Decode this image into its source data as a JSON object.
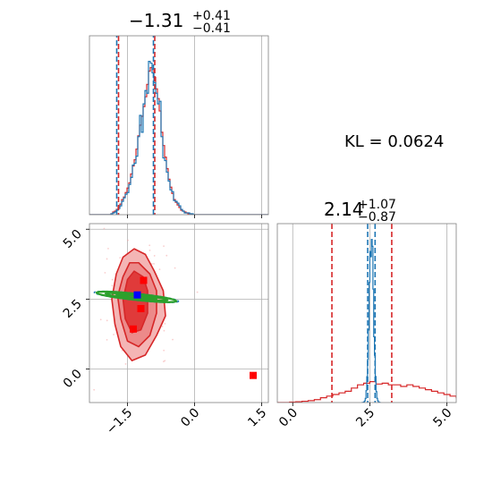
{
  "chart_data": {
    "type": "corner",
    "annotation": "KL = 0.0624",
    "colors": {
      "blue": "#1f77b4",
      "red": "#d62728",
      "green": "#2ca02c",
      "marker_blue": "#0000ff",
      "marker_red": "#ff0000"
    },
    "params": [
      {
        "title_main": "−1.31",
        "title_sup": "+0.41",
        "title_sub": "−0.41",
        "median": -1.31,
        "lo": -1.72,
        "hi": -0.9
      },
      {
        "title_main": "2.14",
        "title_sup": "+1.07",
        "title_sub": "−0.87",
        "median": 2.14,
        "lo": 1.27,
        "hi": 3.21
      }
    ],
    "x_axis": {
      "range": [
        -2.35,
        1.65
      ],
      "ticks": [
        -1.5,
        0.0,
        1.5
      ],
      "tick_labels": [
        "−1.5",
        "0.0",
        "1.5"
      ]
    },
    "y_axis": {
      "range": [
        -1.2,
        5.2
      ],
      "ticks": [
        0.0,
        2.5,
        5.0
      ],
      "tick_labels": [
        "0.0",
        "2.5",
        "5.0"
      ]
    },
    "x2_axis": {
      "range": [
        -0.5,
        5.3
      ],
      "ticks": [
        0.0,
        2.5,
        5.0
      ],
      "tick_labels": [
        "0.0",
        "2.5",
        "5.0"
      ]
    },
    "hist1": {
      "bin_start": -2.35,
      "bin_width": 0.04,
      "blue_quantiles": [
        -1.72,
        -1.31,
        -0.9
      ],
      "red_quantiles": [
        -1.7,
        -1.31,
        -0.89
      ],
      "blue": [
        0,
        0,
        0,
        0,
        0,
        0,
        0,
        0,
        0,
        0,
        0,
        0,
        1,
        2,
        3,
        5,
        7,
        10,
        15,
        19,
        23,
        25,
        34,
        42,
        56,
        58,
        66,
        88,
        112,
        93,
        125,
        140,
        137,
        173,
        171,
        160,
        149,
        137,
        125,
        128,
        88,
        64,
        61,
        48,
        38,
        28,
        26,
        16,
        15,
        13,
        10,
        6,
        4,
        2,
        2,
        2,
        1,
        1,
        0,
        0,
        0,
        0,
        0,
        0,
        0,
        0,
        0,
        0,
        0,
        0,
        0,
        0,
        0,
        0,
        0,
        0,
        0,
        0,
        0,
        0,
        0,
        0,
        0,
        0,
        0,
        0,
        0,
        0,
        0,
        0,
        0,
        0,
        0,
        0,
        0,
        0,
        0,
        0,
        0,
        0
      ],
      "red": [
        0,
        0,
        0,
        0,
        0,
        0,
        0,
        0,
        0,
        0,
        0,
        0,
        1,
        3,
        4,
        6,
        9,
        12,
        17,
        20,
        25,
        30,
        36,
        46,
        55,
        62,
        74,
        89,
        101,
        111,
        122,
        133,
        147,
        162,
        166,
        164,
        155,
        142,
        131,
        117,
        93,
        78,
        65,
        52,
        40,
        31,
        24,
        17,
        14,
        11,
        8,
        5,
        4,
        3,
        2,
        1,
        1,
        0,
        0,
        0,
        0,
        0,
        0,
        0,
        0,
        0,
        0,
        0,
        0,
        0,
        0,
        0,
        0,
        0,
        0,
        0,
        0,
        0,
        0,
        0,
        0,
        0,
        0,
        0,
        0,
        0,
        0,
        0,
        0,
        0,
        0,
        0,
        0,
        0,
        0,
        0,
        0,
        0,
        0,
        0
      ]
    },
    "hist2": {
      "bin_start": -0.5,
      "bin_width": 0.2,
      "blue_quantiles": [
        2.43,
        2.55,
        2.67
      ],
      "red_quantiles": [
        1.27,
        2.14,
        3.21
      ],
      "blue_curve": {
        "mean": 2.55,
        "sd": 0.07,
        "peak": 1.0
      },
      "red": [
        0,
        0,
        0.003,
        0.005,
        0.008,
        0.012,
        0.018,
        0.03,
        0.04,
        0.05,
        0.06,
        0.07,
        0.09,
        0.11,
        0.12,
        0.13,
        0.115,
        0.12,
        0.11,
        0.11,
        0.1,
        0.11,
        0.1,
        0.09,
        0.08,
        0.07,
        0.06,
        0.05,
        0.04,
        0.03,
        0.02
      ]
    },
    "scatter": {
      "red_contours": [
        {
          "level": "outer",
          "points": [
            [
              -1.75,
              3.4
            ],
            [
              -1.6,
              4.0
            ],
            [
              -1.35,
              4.3
            ],
            [
              -1.1,
              4.1
            ],
            [
              -0.9,
              3.5
            ],
            [
              -0.7,
              2.8
            ],
            [
              -0.65,
              1.9
            ],
            [
              -0.85,
              1.2
            ],
            [
              -1.1,
              0.5
            ],
            [
              -1.4,
              0.3
            ],
            [
              -1.65,
              0.8
            ],
            [
              -1.78,
              1.6
            ],
            [
              -1.85,
              2.5
            ]
          ]
        },
        {
          "level": "middle",
          "points": [
            [
              -1.6,
              3.3
            ],
            [
              -1.45,
              3.8
            ],
            [
              -1.25,
              3.8
            ],
            [
              -1.0,
              3.4
            ],
            [
              -0.85,
              2.8
            ],
            [
              -0.85,
              2.0
            ],
            [
              -1.0,
              1.2
            ],
            [
              -1.25,
              0.8
            ],
            [
              -1.5,
              1.0
            ],
            [
              -1.65,
              1.8
            ],
            [
              -1.72,
              2.6
            ]
          ]
        },
        {
          "level": "inner",
          "points": [
            [
              -1.5,
              3.2
            ],
            [
              -1.35,
              3.5
            ],
            [
              -1.15,
              3.3
            ],
            [
              -1.05,
              2.8
            ],
            [
              -1.05,
              2.0
            ],
            [
              -1.2,
              1.4
            ],
            [
              -1.4,
              1.3
            ],
            [
              -1.55,
              1.8
            ],
            [
              -1.6,
              2.5
            ]
          ]
        }
      ],
      "green_ellipses": [
        {
          "cx": -1.3,
          "cy": 2.58,
          "rx": 0.9,
          "ry": 0.11,
          "angle_deg": -6
        },
        {
          "cx": -1.3,
          "cy": 2.58,
          "rx": 0.7,
          "ry": 0.07,
          "angle_deg": -6
        },
        {
          "cx": -1.3,
          "cy": 2.58,
          "rx": 0.45,
          "ry": 0.04,
          "angle_deg": -6
        }
      ],
      "blue_ellipse": {
        "cx": -1.3,
        "cy": 2.58,
        "rx": 0.95,
        "ry": 0.13,
        "angle_deg": -6
      },
      "red_markers": [
        [
          -1.14,
          3.17
        ],
        [
          -1.2,
          2.16
        ],
        [
          -1.37,
          1.43
        ],
        [
          1.31,
          -0.23
        ]
      ],
      "blue_marker": [
        -1.28,
        2.65
      ]
    }
  }
}
